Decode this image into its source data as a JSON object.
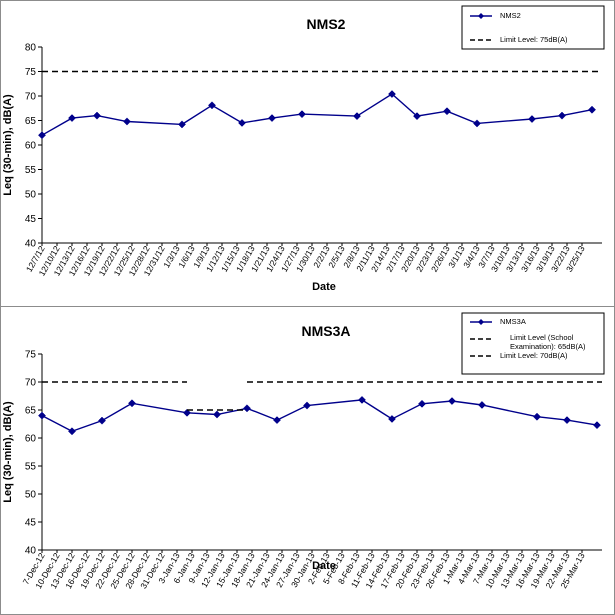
{
  "chart_data": [
    {
      "type": "line",
      "title": "NMS2",
      "xlabel": "Date",
      "ylabel": "Leq (30-min), dB(A)",
      "ylim": [
        40,
        80
      ],
      "yticks": [
        40,
        45,
        50,
        55,
        60,
        65,
        70,
        75,
        80
      ],
      "grid": false,
      "legend_placement": "top-right",
      "x_tick_labels": [
        "12/7/12",
        "12/10/12",
        "12/13/12",
        "12/16/12",
        "12/19/12",
        "12/22/12",
        "12/25/12",
        "12/28/12",
        "12/31/12",
        "1/3/13",
        "1/6/13",
        "1/9/13",
        "1/12/13",
        "1/15/13",
        "1/18/13",
        "1/21/13",
        "1/24/13",
        "1/27/13",
        "1/30/13",
        "2/2/13",
        "2/5/13",
        "2/8/13",
        "2/11/13",
        "2/14/13",
        "2/17/13",
        "2/20/13",
        "2/23/13",
        "2/26/13",
        "3/1/13",
        "3/4/13",
        "3/7/13",
        "3/10/13",
        "3/13/13",
        "3/16/13",
        "3/19/13",
        "3/22/13",
        "3/25/13"
      ],
      "series": [
        {
          "name": "NMS2",
          "style": "line-diamond",
          "color": "#00008b",
          "points": [
            {
              "x": "12/7/12",
              "y": 62.0
            },
            {
              "x": "12/13/12",
              "y": 65.5
            },
            {
              "x": "12/18/12",
              "y": 66.0
            },
            {
              "x": "12/24/12",
              "y": 64.8
            },
            {
              "x": "1/4/13",
              "y": 64.2
            },
            {
              "x": "1/10/13",
              "y": 68.1
            },
            {
              "x": "1/16/13",
              "y": 64.5
            },
            {
              "x": "1/22/13",
              "y": 65.5
            },
            {
              "x": "1/28/13",
              "y": 66.3
            },
            {
              "x": "2/8/13",
              "y": 65.9
            },
            {
              "x": "2/15/13",
              "y": 70.4
            },
            {
              "x": "2/20/13",
              "y": 65.9
            },
            {
              "x": "2/26/13",
              "y": 66.9
            },
            {
              "x": "3/4/13",
              "y": 64.4
            },
            {
              "x": "3/15/13",
              "y": 65.3
            },
            {
              "x": "3/21/13",
              "y": 66.0
            },
            {
              "x": "3/27/13",
              "y": 67.2
            }
          ]
        },
        {
          "name": "Limit Level: 75dB(A)",
          "style": "dashed",
          "color": "#000000",
          "points": [
            {
              "x": "12/7/12",
              "y": 75
            },
            {
              "x": "3/29/13",
              "y": 75
            }
          ]
        }
      ]
    },
    {
      "type": "line",
      "title": "NMS3A",
      "xlabel": "Date",
      "ylabel": "Leq (30-min), dB(A)",
      "ylim": [
        40,
        75
      ],
      "yticks": [
        40,
        45,
        50,
        55,
        60,
        65,
        70,
        75
      ],
      "grid": false,
      "legend_placement": "top-right",
      "x_tick_labels": [
        "7-Dec-12",
        "10-Dec-12",
        "13-Dec-12",
        "16-Dec-12",
        "19-Dec-12",
        "22-Dec-12",
        "25-Dec-12",
        "28-Dec-12",
        "31-Dec-12",
        "3-Jan-13",
        "6-Jan-13",
        "9-Jan-13",
        "12-Jan-13",
        "15-Jan-13",
        "18-Jan-13",
        "21-Jan-13",
        "24-Jan-13",
        "27-Jan-13",
        "30-Jan-13",
        "2-Feb-13",
        "5-Feb-13",
        "8-Feb-13",
        "11-Feb-13",
        "14-Feb-13",
        "17-Feb-13",
        "20-Feb-13",
        "23-Feb-13",
        "26-Feb-13",
        "1-Mar-13",
        "4-Mar-13",
        "7-Mar-13",
        "10-Mar-13",
        "13-Mar-13",
        "16-Mar-13",
        "19-Mar-13",
        "22-Mar-13",
        "25-Mar-13"
      ],
      "series": [
        {
          "name": "NMS3A",
          "style": "line-diamond",
          "color": "#00008b",
          "points": [
            {
              "x": "7-Dec-12",
              "y": 64.0
            },
            {
              "x": "13-Dec-12",
              "y": 61.2
            },
            {
              "x": "19-Dec-12",
              "y": 63.1
            },
            {
              "x": "25-Dec-12",
              "y": 66.2
            },
            {
              "x": "5-Jan-13",
              "y": 64.5
            },
            {
              "x": "11-Jan-13",
              "y": 64.2
            },
            {
              "x": "17-Jan-13",
              "y": 65.3
            },
            {
              "x": "23-Jan-13",
              "y": 63.2
            },
            {
              "x": "29-Jan-13",
              "y": 65.8
            },
            {
              "x": "9-Feb-13",
              "y": 66.8
            },
            {
              "x": "15-Feb-13",
              "y": 63.4
            },
            {
              "x": "21-Feb-13",
              "y": 66.1
            },
            {
              "x": "27-Feb-13",
              "y": 66.6
            },
            {
              "x": "5-Mar-13",
              "y": 65.9
            },
            {
              "x": "16-Mar-13",
              "y": 63.8
            },
            {
              "x": "22-Mar-13",
              "y": 63.2
            },
            {
              "x": "28-Mar-13",
              "y": 62.3
            }
          ]
        },
        {
          "name": "Limit Level (School Examination): 65dB(A)",
          "style": "dashed",
          "color": "#000000",
          "points": [
            {
              "x": "5-Jan-13",
              "y": 65
            },
            {
              "x": "17-Jan-13",
              "y": 65
            }
          ]
        },
        {
          "name": "Limit Level: 70dB(A)",
          "style": "dashed",
          "color": "#000000",
          "segments": [
            [
              {
                "x": "7-Dec-12",
                "y": 70
              },
              {
                "x": "5-Jan-13",
                "y": 70
              }
            ],
            [
              {
                "x": "17-Jan-13",
                "y": 70
              },
              {
                "x": "29-Mar-13",
                "y": 70
              }
            ]
          ]
        }
      ]
    }
  ]
}
